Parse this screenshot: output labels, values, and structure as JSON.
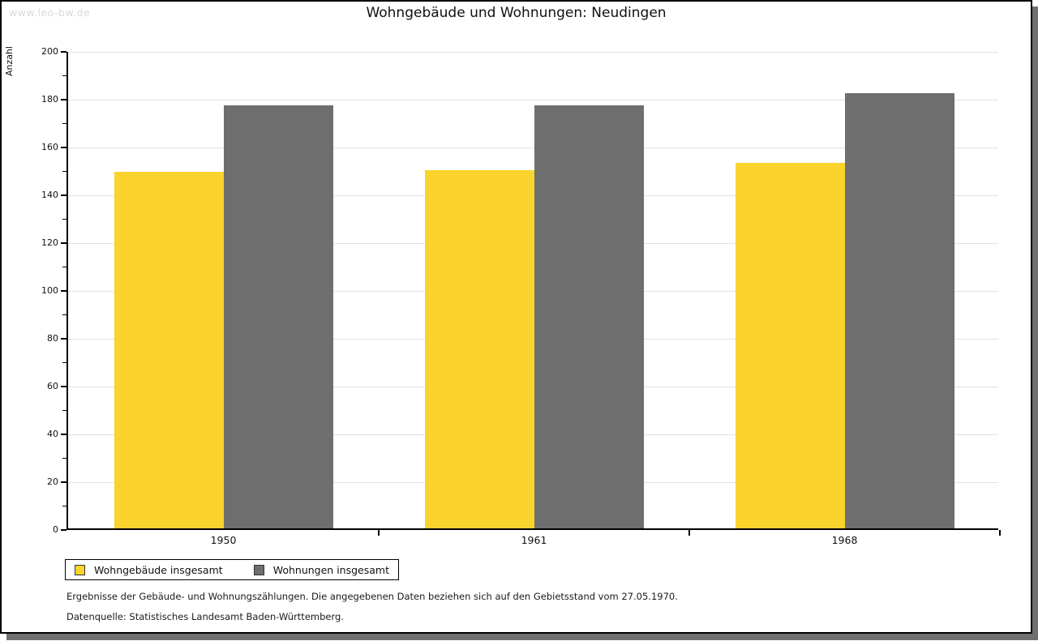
{
  "watermark": "www.leo-bw.de",
  "title": "Wohngebäude und Wohnungen: Neudingen",
  "chart_data": {
    "type": "bar",
    "title": "Wohngebäude und Wohnungen: Neudingen",
    "xlabel": "",
    "ylabel": "Anzahl",
    "categories": [
      "1950",
      "1961",
      "1968"
    ],
    "series": [
      {
        "name": "Wohngebäude insgesamt",
        "color": "#fbd32d",
        "values": [
          149,
          150,
          153
        ]
      },
      {
        "name": "Wohnungen insgesamt",
        "color": "#6e6e6e",
        "values": [
          177,
          177,
          182
        ]
      }
    ],
    "ylim": [
      0,
      200
    ],
    "y_major_step": 20,
    "y_minor_step": 10,
    "grid": true,
    "legend_position": "bottom-left"
  },
  "footnotes": [
    "Ergebnisse der Gebäude- und Wohnungszählungen. Die angegebenen Daten beziehen sich auf den Gebietsstand vom 27.05.1970.",
    "Datenquelle: Statistisches Landesamt Baden-Württemberg."
  ],
  "colors": {
    "bar_yellow": "#fbd32d",
    "bar_gray": "#6e6e6e",
    "gridline": "#e2e2e2",
    "axis": "#000000",
    "watermark_text": "#d8d8d8",
    "card_shadow": "#6f6f6f"
  }
}
